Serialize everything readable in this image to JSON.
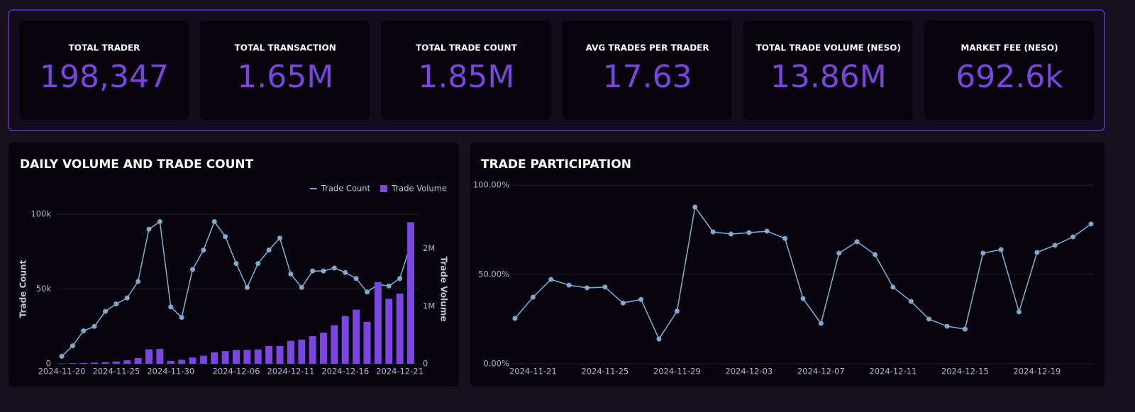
{
  "kpis": [
    {
      "label": "TOTAL TRADER",
      "value": "198,347"
    },
    {
      "label": "TOTAL TRANSACTION",
      "value": "1.65M"
    },
    {
      "label": "TOTAL TRADE COUNT",
      "value": "1.85M"
    },
    {
      "label": "AVG TRADES PER TRADER",
      "value": "17.63"
    },
    {
      "label": "TOTAL TRADE VOLUME (NESO)",
      "value": "13.86M"
    },
    {
      "label": "MARKET FEE (NESO)",
      "value": "692.6k"
    }
  ],
  "chart_data": [
    {
      "type": "combo",
      "title": "DAILY VOLUME AND TRADE COUNT",
      "x": [
        "2024-11-20",
        "2024-11-21",
        "2024-11-22",
        "2024-11-23",
        "2024-11-24",
        "2024-11-25",
        "2024-11-26",
        "2024-11-27",
        "2024-11-28",
        "2024-11-29",
        "2024-11-30",
        "2024-12-01",
        "2024-12-02",
        "2024-12-03",
        "2024-12-04",
        "2024-12-05",
        "2024-12-06",
        "2024-12-07",
        "2024-12-08",
        "2024-12-09",
        "2024-12-10",
        "2024-12-11",
        "2024-12-12",
        "2024-12-13",
        "2024-12-14",
        "2024-12-15",
        "2024-12-16",
        "2024-12-17",
        "2024-12-18",
        "2024-12-19",
        "2024-12-20",
        "2024-12-21",
        "2024-12-22"
      ],
      "xticks": [
        "2024-11-20",
        "2024-11-25",
        "2024-11-30",
        "2024-12-06",
        "2024-12-11",
        "2024-12-16",
        "2024-12-21"
      ],
      "ylabel": "Trade Count",
      "y2label": "Trade Volume",
      "ylim": [
        0,
        100000
      ],
      "yticks": [
        0,
        {
          "value": 50000,
          "label": "50k"
        },
        {
          "value": 100000,
          "label": "100k"
        }
      ],
      "y2lim": [
        0,
        2600000
      ],
      "y2ticks": [
        0,
        {
          "value": 1000000,
          "label": "1M"
        },
        {
          "value": 2000000,
          "label": "2M"
        }
      ],
      "grid": true,
      "legend": "top-right",
      "series": [
        {
          "name": "Trade Count",
          "type": "line",
          "color": "#7fa8cc",
          "values": [
            5000,
            12000,
            22000,
            25000,
            35000,
            40000,
            44000,
            55000,
            90000,
            95000,
            38000,
            31000,
            63000,
            76000,
            95000,
            85000,
            67000,
            51000,
            67000,
            76000,
            84000,
            60000,
            51000,
            62000,
            62000,
            64000,
            61000,
            57000,
            48000,
            53000,
            52000,
            57000,
            80000
          ]
        },
        {
          "name": "Trade Volume",
          "type": "bar",
          "axis": "y2",
          "color": "#7b45e0",
          "values": [
            5000,
            10000,
            15000,
            20000,
            30000,
            40000,
            60000,
            100000,
            250000,
            260000,
            50000,
            70000,
            110000,
            140000,
            200000,
            220000,
            240000,
            240000,
            250000,
            310000,
            310000,
            400000,
            420000,
            480000,
            540000,
            670000,
            830000,
            940000,
            730000,
            1420000,
            1130000,
            1220000,
            2460000
          ]
        }
      ]
    },
    {
      "type": "line",
      "title": "TRADE PARTICIPATION",
      "x": [
        "2024-11-20",
        "2024-11-21",
        "2024-11-22",
        "2024-11-23",
        "2024-11-24",
        "2024-11-25",
        "2024-11-26",
        "2024-11-27",
        "2024-11-28",
        "2024-11-29",
        "2024-11-30",
        "2024-12-01",
        "2024-12-02",
        "2024-12-03",
        "2024-12-04",
        "2024-12-05",
        "2024-12-06",
        "2024-12-07",
        "2024-12-08",
        "2024-12-09",
        "2024-12-10",
        "2024-12-11",
        "2024-12-12",
        "2024-12-13",
        "2024-12-14",
        "2024-12-15",
        "2024-12-16",
        "2024-12-17",
        "2024-12-18",
        "2024-12-19",
        "2024-12-20",
        "2024-12-21",
        "2024-12-22"
      ],
      "xticks": [
        "2024-11-21",
        "2024-11-25",
        "2024-11-29",
        "2024-12-03",
        "2024-12-07",
        "2024-12-11",
        "2024-12-15",
        "2024-12-19"
      ],
      "ylim": [
        0,
        100
      ],
      "yticks": [
        {
          "value": 0,
          "label": "0.00%"
        },
        {
          "value": 50,
          "label": "50.00%"
        },
        {
          "value": 100,
          "label": "100.00%"
        }
      ],
      "grid": true,
      "series": [
        {
          "color": "#7fa8cc",
          "values": [
            25.4,
            37.3,
            47.2,
            44,
            42.5,
            42.9,
            34,
            36,
            13.9,
            29.4,
            87.7,
            73.8,
            72.6,
            73.4,
            74.2,
            70.2,
            36.5,
            22.6,
            61.9,
            68.3,
            61.1,
            42.9,
            34.9,
            25,
            21,
            19.4,
            61.9,
            63.9,
            29,
            62.3,
            66.3,
            71,
            78.2
          ]
        }
      ]
    }
  ]
}
